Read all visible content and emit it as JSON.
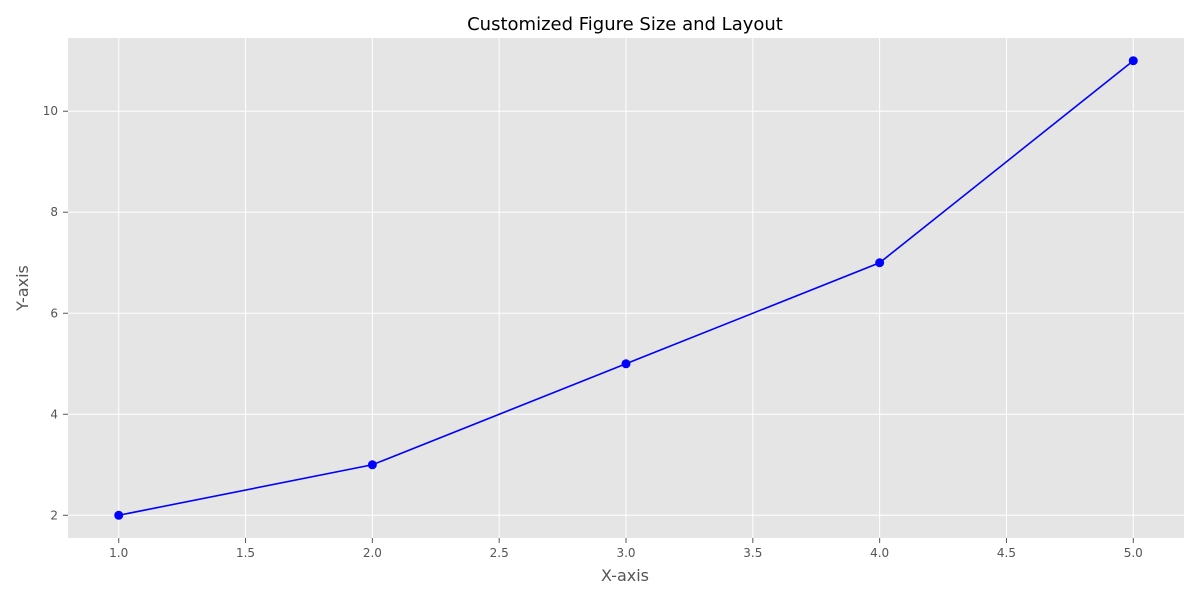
{
  "chart_data": {
    "type": "line",
    "title": "Customized Figure Size and Layout",
    "xlabel": "X-axis",
    "ylabel": "Y-axis",
    "x": [
      1,
      2,
      3,
      4,
      5
    ],
    "series": [
      {
        "values": [
          2,
          3,
          5,
          7,
          11
        ],
        "color": "#0000ff",
        "marker": "circle"
      }
    ],
    "xlim": [
      0.8,
      5.2
    ],
    "ylim": [
      1.55,
      11.45
    ],
    "xticks": [
      1.0,
      1.5,
      2.0,
      2.5,
      3.0,
      3.5,
      4.0,
      4.5,
      5.0
    ],
    "xtick_labels": [
      "1.0",
      "1.5",
      "2.0",
      "2.5",
      "3.0",
      "3.5",
      "4.0",
      "4.5",
      "5.0"
    ],
    "yticks": [
      2,
      4,
      6,
      8,
      10
    ],
    "ytick_labels": [
      "2",
      "4",
      "6",
      "8",
      "10"
    ],
    "grid": true,
    "plot_background": "#e5e5e5",
    "grid_color": "#ffffff"
  }
}
